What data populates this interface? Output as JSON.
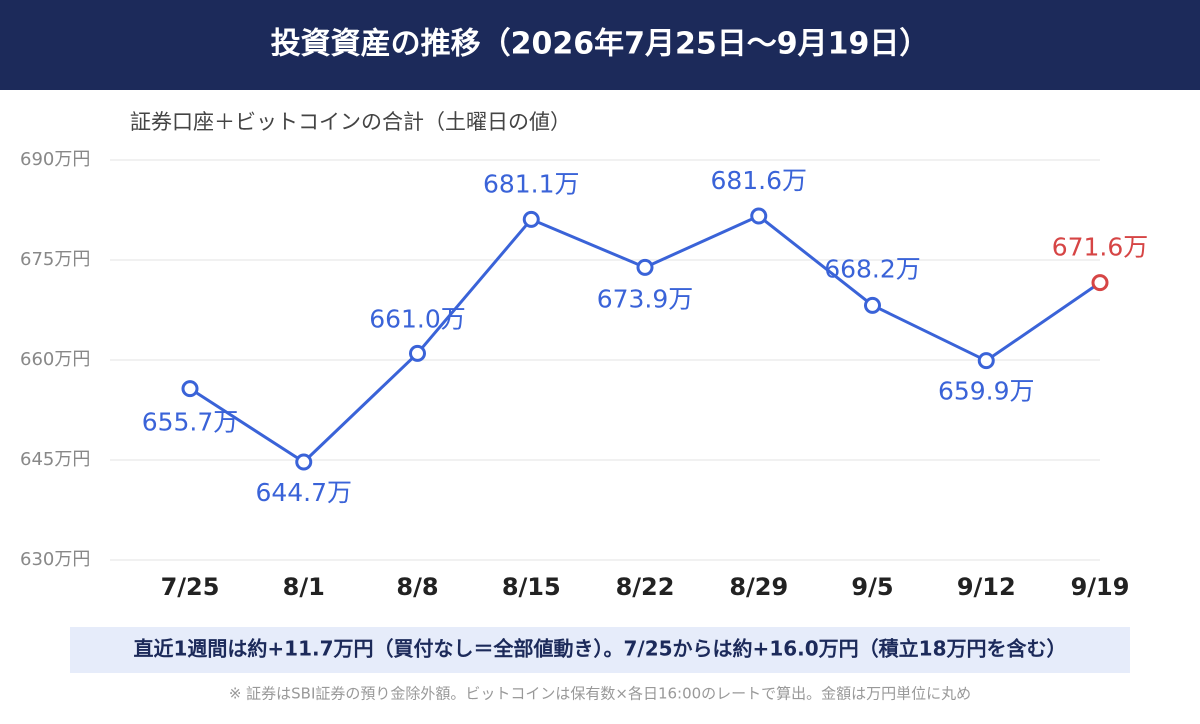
{
  "header": {
    "title": "投資資産の推移（2026年7月25日〜9月19日）"
  },
  "chart_data": {
    "type": "line",
    "subtitle": "証券口座＋ビットコインの合計（土曜日の値）",
    "categories": [
      "7/25",
      "8/1",
      "8/8",
      "8/15",
      "8/22",
      "8/29",
      "9/5",
      "9/12",
      "9/19"
    ],
    "values": [
      655.7,
      644.7,
      661.0,
      681.1,
      673.9,
      681.6,
      668.2,
      659.9,
      671.6
    ],
    "value_labels": [
      "655.7万",
      "644.7万",
      "661.0万",
      "681.1万",
      "673.9万",
      "681.6万",
      "668.2万",
      "659.9万",
      "671.6万"
    ],
    "color": "#3a63d8",
    "last_point_color": "#d64545",
    "ylim": [
      630,
      690
    ],
    "yticks": [
      {
        "value": 630,
        "label": "630万円"
      },
      {
        "value": 645,
        "label": "645万円"
      },
      {
        "value": 660,
        "label": "660万円"
      },
      {
        "value": 675,
        "label": "675万円"
      },
      {
        "value": 690,
        "label": "690万円"
      }
    ],
    "grid": true
  },
  "note": "直近1週間は約+11.7万円（買付なし＝全部値動き）。7/25からは約+16.0万円（積立18万円を含む）",
  "footnote": "※ 証券はSBI証券の預り金除外額。ビットコインは保有数×各日16:00のレートで算出。金額は万円単位に丸め"
}
